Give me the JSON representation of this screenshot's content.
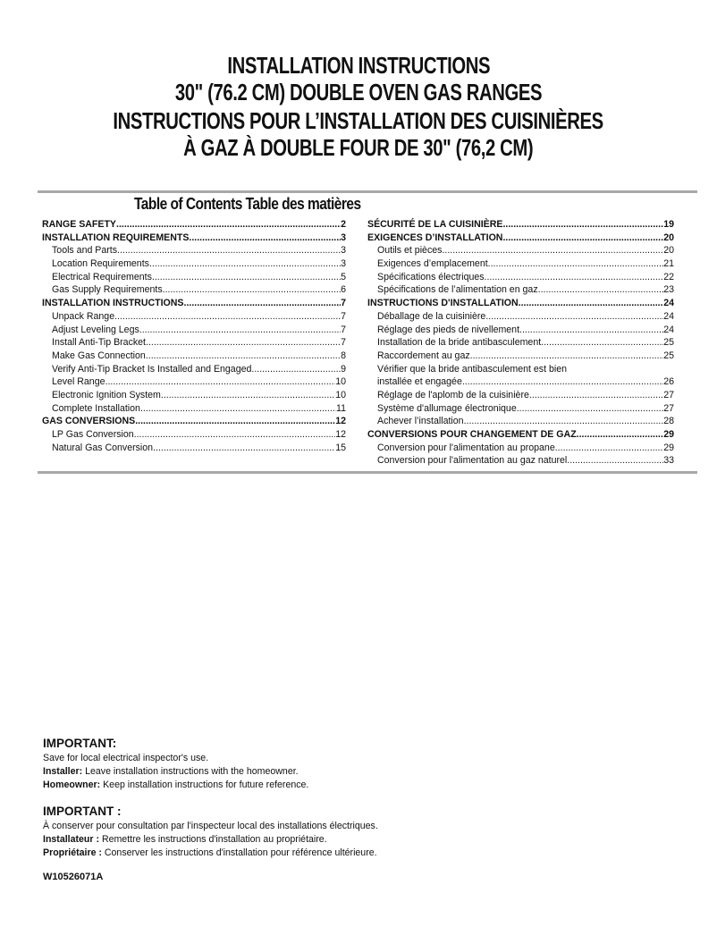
{
  "title": {
    "lines": [
      "INSTALLATION INSTRUCTIONS",
      "30\" (76.2 CM) DOUBLE OVEN GAS RANGES",
      "INSTRUCTIONS POUR L’INSTALLATION DES CUISINIÈRES",
      "À GAZ À DOUBLE FOUR DE 30\" (76,2 CM)"
    ]
  },
  "toc": {
    "heading": "Table of Contents Table des matières",
    "left": [
      {
        "label": "RANGE SAFETY",
        "page": "2",
        "level": 1
      },
      {
        "label": "INSTALLATION REQUIREMENTS",
        "page": "3",
        "level": 1
      },
      {
        "label": "Tools and Parts",
        "page": "3",
        "level": 2
      },
      {
        "label": "Location Requirements",
        "page": "3",
        "level": 2
      },
      {
        "label": "Electrical Requirements",
        "page": "5",
        "level": 2
      },
      {
        "label": "Gas Supply Requirements",
        "page": "6",
        "level": 2
      },
      {
        "label": "INSTALLATION INSTRUCTIONS",
        "page": "7",
        "level": 1
      },
      {
        "label": "Unpack Range",
        "page": "7",
        "level": 2
      },
      {
        "label": "Adjust Leveling Legs",
        "page": "7",
        "level": 2
      },
      {
        "label": "Install Anti-Tip Bracket",
        "page": "7",
        "level": 2
      },
      {
        "label": "Make Gas Connection",
        "page": "8",
        "level": 2
      },
      {
        "label": "Verify Anti-Tip Bracket Is Installed and Engaged",
        "page": "9",
        "level": 2
      },
      {
        "label": "Level Range",
        "page": "10",
        "level": 2
      },
      {
        "label": "Electronic Ignition System",
        "page": "10",
        "level": 2
      },
      {
        "label": "Complete Installation",
        "page": "11",
        "level": 2
      },
      {
        "label": "GAS CONVERSIONS",
        "page": "12",
        "level": 1
      },
      {
        "label": "LP Gas Conversion",
        "page": "12",
        "level": 2
      },
      {
        "label": "Natural Gas Conversion",
        "page": "15",
        "level": 2
      }
    ],
    "right": [
      {
        "label": "SÉCURITÉ DE LA CUISINIÈRE",
        "page": "19",
        "level": 1
      },
      {
        "label": "EXIGENCES D’INSTALLATION",
        "page": "20",
        "level": 1
      },
      {
        "label": "Outils et pièces",
        "page": "20",
        "level": 2
      },
      {
        "label": "Exigences d’emplacement",
        "page": "21",
        "level": 2
      },
      {
        "label": "Spécifications électriques",
        "page": "22",
        "level": 2
      },
      {
        "label": "Spécifications de l’alimentation en gaz",
        "page": "23",
        "level": 2
      },
      {
        "label": "INSTRUCTIONS D'INSTALLATION",
        "page": "24",
        "level": 1
      },
      {
        "label": "Déballage de la cuisinière",
        "page": "24",
        "level": 2
      },
      {
        "label": "Réglage des pieds de nivellement",
        "page": "24",
        "level": 2
      },
      {
        "label": "Installation de la bride antibasculement",
        "page": "25",
        "level": 2
      },
      {
        "label": "Raccordement au gaz",
        "page": "25",
        "level": 2
      },
      {
        "label": "Vérifier que la bride antibasculement est bien",
        "label2": "installée et engagée",
        "page": "26",
        "level": 2
      },
      {
        "label": "Réglage de l'aplomb de la cuisinière",
        "page": "27",
        "level": 2
      },
      {
        "label": "Système d'allumage électronique",
        "page": "27",
        "level": 2
      },
      {
        "label": "Achever l’installation",
        "page": "28",
        "level": 2
      },
      {
        "label": "CONVERSIONS POUR CHANGEMENT DE GAZ",
        "page": "29",
        "level": 1
      },
      {
        "label": "Conversion pour l'alimentation au propane",
        "page": "29",
        "level": 2
      },
      {
        "label": "Conversion pour l'alimentation au gaz naturel",
        "page": "33",
        "level": 2
      }
    ]
  },
  "important_en": {
    "heading": "IMPORTANT:",
    "line1": "Save for local electrical inspector's use.",
    "installer_label": "Installer:",
    "installer_text": " Leave installation instructions with the homeowner.",
    "homeowner_label": "Homeowner:",
    "homeowner_text": " Keep installation instructions for future reference."
  },
  "important_fr": {
    "heading": "IMPORTANT :",
    "line1": "À conserver pour consultation par l'inspecteur local des installations électriques.",
    "installer_label": "Installateur :",
    "installer_text": " Remettre les instructions d'installation au propriétaire.",
    "homeowner_label": "Propriétaire :",
    "homeowner_text": " Conserver les instructions d'installation pour référence ultérieure."
  },
  "doc_code": "W10526071A"
}
